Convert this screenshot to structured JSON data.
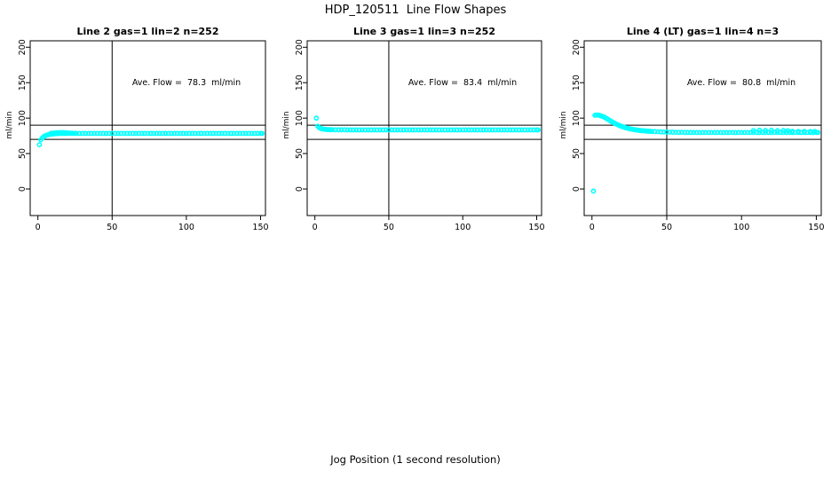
{
  "figure": {
    "title": "HDP_120511  Line Flow Shapes",
    "xlabel": "Jog Position (1 second resolution)",
    "background": "#ffffff",
    "axis_color": "#000000",
    "point_color": "#00ffff"
  },
  "chart_data": [
    {
      "type": "scatter",
      "title": "Line 2 gas=1 lin=2 n=252",
      "annotation": "Ave. Flow =  78.3  ml/min",
      "ave_flow_ml_min": 78.3,
      "ylabel": "ml/min",
      "x_ticks": [
        0,
        50,
        100,
        150
      ],
      "y_ticks": [
        0,
        50,
        100,
        150,
        200
      ],
      "xlim": [
        -5.2,
        153.3
      ],
      "ylim": [
        -37.5,
        209.1
      ],
      "h_ref_lines": [
        70,
        90
      ],
      "v_ref_lines": [
        50
      ],
      "grid": false,
      "points": [
        [
          1,
          62.5
        ],
        [
          2,
          69.5
        ],
        [
          3,
          72
        ],
        [
          4,
          74
        ],
        [
          5,
          75.2
        ],
        [
          6,
          76
        ],
        [
          7,
          76.6
        ],
        [
          8,
          77
        ],
        [
          9,
          77.4
        ],
        [
          10,
          77.7
        ],
        [
          11,
          77.9
        ],
        [
          12,
          78.1
        ],
        [
          13,
          78.2
        ],
        [
          14,
          78.3
        ],
        [
          15,
          78.4
        ],
        [
          16,
          78.4
        ],
        [
          17,
          78.4
        ],
        [
          18,
          78.4
        ],
        [
          19,
          78.4
        ],
        [
          20,
          78.4
        ],
        [
          9,
          78.8
        ],
        [
          11,
          79.2
        ],
        [
          13,
          79.5
        ],
        [
          15,
          79.7
        ],
        [
          17,
          79.6
        ],
        [
          19,
          79.4
        ],
        [
          21,
          79.1
        ],
        [
          23,
          78.8
        ],
        [
          25,
          78.6
        ],
        [
          22,
          78.4
        ],
        [
          24,
          78.4
        ],
        [
          26,
          78.4
        ],
        [
          28,
          78.4
        ],
        [
          30,
          78.4
        ],
        [
          32,
          78.4
        ],
        [
          34,
          78.4
        ],
        [
          36,
          78.4
        ],
        [
          38,
          78.4
        ],
        [
          40,
          78.4
        ],
        [
          42,
          78.4
        ],
        [
          44,
          78.4
        ],
        [
          46,
          78.4
        ],
        [
          48,
          78.4
        ],
        [
          50,
          78.4
        ],
        [
          52,
          78.4
        ],
        [
          54,
          78.4
        ],
        [
          56,
          78.4
        ],
        [
          58,
          78.4
        ],
        [
          60,
          78.4
        ],
        [
          62,
          78.4
        ],
        [
          64,
          78.4
        ],
        [
          66,
          78.4
        ],
        [
          68,
          78.4
        ],
        [
          70,
          78.4
        ],
        [
          72,
          78.4
        ],
        [
          74,
          78.4
        ],
        [
          76,
          78.4
        ],
        [
          78,
          78.4
        ],
        [
          80,
          78.4
        ],
        [
          82,
          78.4
        ],
        [
          84,
          78.4
        ],
        [
          86,
          78.4
        ],
        [
          88,
          78.4
        ],
        [
          90,
          78.4
        ],
        [
          92,
          78.4
        ],
        [
          94,
          78.4
        ],
        [
          96,
          78.4
        ],
        [
          98,
          78.4
        ],
        [
          100,
          78.4
        ],
        [
          102,
          78.4
        ],
        [
          104,
          78.4
        ],
        [
          106,
          78.4
        ],
        [
          108,
          78.4
        ],
        [
          110,
          78.4
        ],
        [
          112,
          78.4
        ],
        [
          114,
          78.4
        ],
        [
          116,
          78.4
        ],
        [
          118,
          78.4
        ],
        [
          120,
          78.4
        ],
        [
          122,
          78.4
        ],
        [
          124,
          78.4
        ],
        [
          126,
          78.4
        ],
        [
          128,
          78.4
        ],
        [
          130,
          78.4
        ],
        [
          132,
          78.4
        ],
        [
          134,
          78.4
        ],
        [
          136,
          78.4
        ],
        [
          138,
          78.4
        ],
        [
          140,
          78.4
        ],
        [
          142,
          78.4
        ],
        [
          144,
          78.4
        ],
        [
          146,
          78.4
        ],
        [
          148,
          78.4
        ],
        [
          150,
          78.4
        ],
        [
          151,
          78.4
        ]
      ]
    },
    {
      "type": "scatter",
      "title": "Line 3 gas=1 lin=3 n=252",
      "annotation": "Ave. Flow =  83.4  ml/min",
      "ave_flow_ml_min": 83.4,
      "ylabel": "ml/min",
      "x_ticks": [
        0,
        50,
        100,
        150
      ],
      "y_ticks": [
        0,
        50,
        100,
        150,
        200
      ],
      "xlim": [
        -5.2,
        153.3
      ],
      "ylim": [
        -37.5,
        209.1
      ],
      "h_ref_lines": [
        70,
        90
      ],
      "v_ref_lines": [
        50
      ],
      "grid": false,
      "points": [
        [
          1,
          100
        ],
        [
          2,
          88.5
        ],
        [
          3,
          86.5
        ],
        [
          4,
          85.4
        ],
        [
          5,
          84.8
        ],
        [
          6,
          84.4
        ],
        [
          7,
          84.1
        ],
        [
          8,
          83.9
        ],
        [
          9,
          83.8
        ],
        [
          10,
          83.7
        ],
        [
          11,
          83.6
        ],
        [
          12,
          83.6
        ],
        [
          14,
          83.5
        ],
        [
          16,
          83.5
        ],
        [
          18,
          83.5
        ],
        [
          20,
          83.5
        ],
        [
          22,
          83.4
        ],
        [
          24,
          83.4
        ],
        [
          26,
          83.4
        ],
        [
          28,
          83.4
        ],
        [
          30,
          83.4
        ],
        [
          32,
          83.4
        ],
        [
          34,
          83.4
        ],
        [
          36,
          83.4
        ],
        [
          38,
          83.4
        ],
        [
          40,
          83.4
        ],
        [
          42,
          83.4
        ],
        [
          44,
          83.4
        ],
        [
          46,
          83.4
        ],
        [
          48,
          83.4
        ],
        [
          50,
          83.4
        ],
        [
          52,
          83.4
        ],
        [
          54,
          83.4
        ],
        [
          56,
          83.4
        ],
        [
          58,
          83.4
        ],
        [
          60,
          83.4
        ],
        [
          62,
          83.4
        ],
        [
          64,
          83.4
        ],
        [
          66,
          83.4
        ],
        [
          68,
          83.4
        ],
        [
          70,
          83.4
        ],
        [
          72,
          83.4
        ],
        [
          74,
          83.4
        ],
        [
          76,
          83.4
        ],
        [
          78,
          83.4
        ],
        [
          80,
          83.4
        ],
        [
          82,
          83.4
        ],
        [
          84,
          83.4
        ],
        [
          86,
          83.4
        ],
        [
          88,
          83.4
        ],
        [
          90,
          83.4
        ],
        [
          92,
          83.4
        ],
        [
          94,
          83.4
        ],
        [
          96,
          83.4
        ],
        [
          98,
          83.4
        ],
        [
          100,
          83.4
        ],
        [
          102,
          83.4
        ],
        [
          104,
          83.4
        ],
        [
          106,
          83.4
        ],
        [
          108,
          83.4
        ],
        [
          110,
          83.4
        ],
        [
          112,
          83.4
        ],
        [
          114,
          83.4
        ],
        [
          116,
          83.4
        ],
        [
          118,
          83.4
        ],
        [
          120,
          83.4
        ],
        [
          122,
          83.4
        ],
        [
          124,
          83.4
        ],
        [
          126,
          83.4
        ],
        [
          128,
          83.4
        ],
        [
          130,
          83.4
        ],
        [
          132,
          83.4
        ],
        [
          134,
          83.4
        ],
        [
          136,
          83.4
        ],
        [
          138,
          83.4
        ],
        [
          140,
          83.4
        ],
        [
          142,
          83.4
        ],
        [
          144,
          83.4
        ],
        [
          146,
          83.4
        ],
        [
          148,
          83.4
        ],
        [
          150,
          83.4
        ],
        [
          151,
          83.4
        ]
      ]
    },
    {
      "type": "scatter",
      "title": "Line 4 (LT) gas=1 lin=4 n=3",
      "annotation": "Ave. Flow =  80.8  ml/min",
      "ave_flow_ml_min": 80.8,
      "ylabel": "ml/min",
      "x_ticks": [
        0,
        50,
        100,
        150
      ],
      "y_ticks": [
        0,
        50,
        100,
        150,
        200
      ],
      "xlim": [
        -5.2,
        153.3
      ],
      "ylim": [
        -37.5,
        209.1
      ],
      "h_ref_lines": [
        70,
        90
      ],
      "v_ref_lines": [
        50
      ],
      "grid": false,
      "points": [
        [
          1,
          -3
        ],
        [
          2,
          104
        ],
        [
          3,
          104.4
        ],
        [
          4,
          104.3
        ],
        [
          5,
          103.9
        ],
        [
          6,
          103.3
        ],
        [
          7,
          102.5
        ],
        [
          8,
          101.5
        ],
        [
          9,
          100.4
        ],
        [
          10,
          99.2
        ],
        [
          11,
          97.9
        ],
        [
          12,
          96.6
        ],
        [
          13,
          95.3
        ],
        [
          14,
          94.1
        ],
        [
          15,
          92.9
        ],
        [
          16,
          91.8
        ],
        [
          17,
          90.8
        ],
        [
          18,
          89.9
        ],
        [
          19,
          89
        ],
        [
          20,
          88.2
        ],
        [
          21,
          87.5
        ],
        [
          22,
          86.8
        ],
        [
          23,
          86.2
        ],
        [
          24,
          85.6
        ],
        [
          25,
          85.1
        ],
        [
          26,
          84.6
        ],
        [
          27,
          84.2
        ],
        [
          28,
          83.8
        ],
        [
          29,
          83.5
        ],
        [
          30,
          83.2
        ],
        [
          31,
          82.9
        ],
        [
          32,
          82.6
        ],
        [
          33,
          82.4
        ],
        [
          34,
          82.2
        ],
        [
          35,
          82
        ],
        [
          36,
          81.8
        ],
        [
          37,
          81.6
        ],
        [
          38,
          81.5
        ],
        [
          39,
          81.3
        ],
        [
          40,
          81.2
        ],
        [
          42,
          81
        ],
        [
          44,
          80.8
        ],
        [
          46,
          80.6
        ],
        [
          48,
          80.4
        ],
        [
          50,
          80.3
        ],
        [
          52,
          80.2
        ],
        [
          54,
          80.1
        ],
        [
          56,
          80
        ],
        [
          58,
          79.9
        ],
        [
          60,
          79.9
        ],
        [
          62,
          79.8
        ],
        [
          64,
          79.8
        ],
        [
          66,
          79.8
        ],
        [
          68,
          79.7
        ],
        [
          70,
          79.7
        ],
        [
          72,
          79.7
        ],
        [
          74,
          79.7
        ],
        [
          76,
          79.7
        ],
        [
          78,
          79.7
        ],
        [
          80,
          79.7
        ],
        [
          82,
          79.7
        ],
        [
          84,
          79.7
        ],
        [
          86,
          79.7
        ],
        [
          88,
          79.7
        ],
        [
          90,
          79.7
        ],
        [
          92,
          79.7
        ],
        [
          94,
          79.7
        ],
        [
          96,
          79.7
        ],
        [
          98,
          79.7
        ],
        [
          100,
          79.7
        ],
        [
          102,
          79.7
        ],
        [
          104,
          79.7
        ],
        [
          106,
          79.7
        ],
        [
          108,
          79.7
        ],
        [
          110,
          79.7
        ],
        [
          112,
          79.7
        ],
        [
          114,
          79.7
        ],
        [
          116,
          79.7
        ],
        [
          118,
          79.7
        ],
        [
          120,
          79.7
        ],
        [
          122,
          79.7
        ],
        [
          124,
          79.7
        ],
        [
          126,
          79.7
        ],
        [
          128,
          79.7
        ],
        [
          130,
          79.7
        ],
        [
          132,
          79.7
        ],
        [
          134,
          79.7
        ],
        [
          136,
          79.7
        ],
        [
          138,
          79.7
        ],
        [
          140,
          79.7
        ],
        [
          142,
          79.7
        ],
        [
          144,
          79.7
        ],
        [
          146,
          79.7
        ],
        [
          148,
          79.7
        ],
        [
          150,
          79.7
        ],
        [
          151,
          79.7
        ],
        [
          108,
          82.4
        ],
        [
          112,
          82.9
        ],
        [
          116,
          82.6
        ],
        [
          120,
          82.9
        ],
        [
          124,
          82.3
        ],
        [
          128,
          82.7
        ],
        [
          131,
          82.2
        ],
        [
          134,
          81.4
        ],
        [
          138,
          81.2
        ],
        [
          142,
          81.3
        ],
        [
          146,
          81.1
        ],
        [
          149,
          81.2
        ]
      ]
    }
  ]
}
